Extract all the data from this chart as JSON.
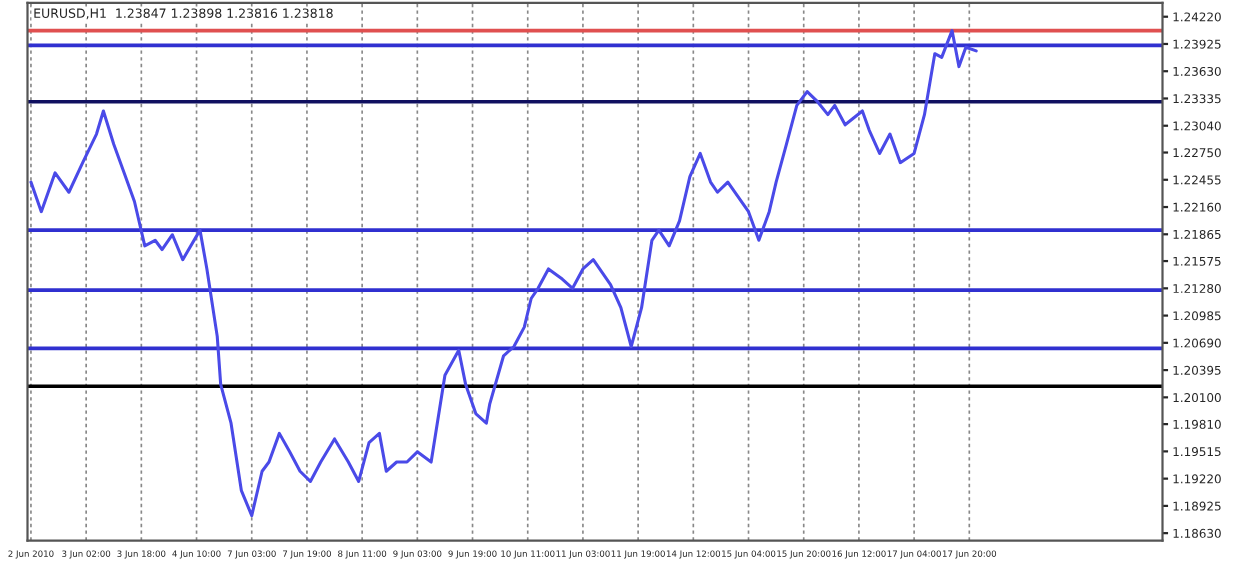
{
  "chart_data": {
    "type": "line",
    "title": "EURUSD,H1  1.23847 1.23898 1.23816 1.23818",
    "categories": [
      "2 Jun 2010",
      null,
      null,
      null,
      null,
      null,
      null,
      null,
      null,
      null,
      null,
      null,
      null,
      null,
      null,
      null,
      "3 Jun 02:00",
      null,
      null,
      null,
      null,
      null,
      null,
      null,
      null,
      null,
      null,
      null,
      null,
      null,
      null,
      null,
      "3 Jun 18:00",
      null,
      null,
      null,
      null,
      null,
      null,
      null,
      null,
      null,
      null,
      null,
      null,
      null,
      null,
      null,
      "4 Jun 10:00",
      null,
      null,
      null,
      null,
      null,
      null,
      null,
      null,
      null,
      null,
      null,
      null,
      null,
      null,
      null,
      "7 Jun 03:00",
      null,
      null,
      null,
      null,
      null,
      null,
      null,
      null,
      null,
      null,
      null,
      null,
      null,
      null,
      null,
      "7 Jun 19:00",
      null,
      null,
      null,
      null,
      null,
      null,
      null,
      null,
      null,
      null,
      null,
      null,
      null,
      null,
      null,
      "8 Jun 11:00",
      null,
      null,
      null,
      null,
      null,
      null,
      null,
      null,
      null,
      null,
      null,
      null,
      null,
      null,
      null,
      "9 Jun 03:00",
      null,
      null,
      null,
      null,
      null,
      null,
      null,
      null,
      null,
      null,
      null,
      null,
      null,
      null,
      null,
      "9 Jun 19:00",
      null,
      null,
      null,
      null,
      null,
      null,
      null,
      null,
      null,
      null,
      null,
      null,
      null,
      null,
      null,
      "10 Jun 11:00",
      null,
      null,
      null,
      null,
      null,
      null,
      null,
      null,
      null,
      null,
      null,
      null,
      null,
      null,
      null,
      "11 Jun 03:00",
      null,
      null,
      null,
      null,
      null,
      null,
      null,
      null,
      null,
      null,
      null,
      null,
      null,
      null,
      null,
      "11 Jun 19:00",
      null,
      null,
      null,
      null,
      null,
      null,
      null,
      null,
      null,
      null,
      null,
      null,
      null,
      null,
      null,
      "14 Jun 12:00",
      null,
      null,
      null,
      null,
      null,
      null,
      null,
      null,
      null,
      null,
      null,
      null,
      null,
      null,
      null,
      "15 Jun 04:00",
      null,
      null,
      null,
      null,
      null,
      null,
      null,
      null,
      null,
      null,
      null,
      null,
      null,
      null,
      null,
      "15 Jun 20:00",
      null,
      null,
      null,
      null,
      null,
      null,
      null,
      null,
      null,
      null,
      null,
      null,
      null,
      null,
      null,
      "16 Jun 12:00",
      null,
      null,
      null,
      null,
      null,
      null,
      null,
      null,
      null,
      null,
      null,
      null,
      null,
      null,
      null,
      "17 Jun 04:00",
      null,
      null,
      null,
      null,
      null,
      null,
      null,
      null,
      null,
      null,
      null,
      null,
      null,
      null,
      null,
      "17 Jun 20:00",
      null,
      null,
      null,
      null,
      null,
      null,
      null,
      null,
      null,
      null,
      null,
      null,
      null,
      null,
      null,
      null,
      null,
      null,
      null,
      null,
      null,
      null,
      null,
      null,
      null,
      null,
      null,
      null,
      null,
      null,
      null,
      null,
      null,
      null,
      null,
      null,
      null,
      null,
      null,
      null,
      null,
      null,
      null,
      null,
      null,
      null,
      null,
      null,
      null,
      null,
      null,
      null,
      null,
      null,
      null
    ],
    "series": [
      {
        "color": "#4a4ae8",
        "values": [
          1.2243,
          null,
          null,
          1.2211,
          null,
          null,
          null,
          1.2253,
          null,
          null,
          null,
          1.2232,
          null,
          null,
          null,
          1.2264,
          null,
          null,
          null,
          1.2295,
          null,
          1.232,
          null,
          null,
          1.2284,
          null,
          null,
          1.2253,
          null,
          null,
          1.2222,
          null,
          null,
          1.2174,
          null,
          null,
          1.218,
          null,
          1.217,
          null,
          null,
          1.2186,
          null,
          null,
          1.2159,
          null,
          null,
          null,
          null,
          1.2191,
          null,
          1.2149,
          null,
          null,
          1.2076,
          1.2024,
          null,
          null,
          1.1982,
          null,
          null,
          1.1909,
          null,
          null,
          1.1882,
          null,
          null,
          1.193,
          null,
          1.194,
          null,
          null,
          1.1971,
          null,
          null,
          1.1951,
          null,
          null,
          1.193,
          null,
          null,
          1.1919,
          null,
          null,
          1.194,
          null,
          null,
          null,
          1.1965,
          null,
          null,
          null,
          1.194,
          null,
          null,
          1.1919,
          null,
          null,
          1.1961,
          null,
          null,
          1.1971,
          null,
          1.193,
          null,
          null,
          1.194,
          null,
          null,
          1.194,
          null,
          null,
          1.1951,
          null,
          null,
          null,
          1.194,
          null,
          null,
          null,
          1.2034,
          null,
          null,
          null,
          1.2061,
          null,
          1.2024,
          null,
          null,
          1.1992,
          null,
          null,
          1.1982,
          1.2003,
          null,
          null,
          null,
          1.2055,
          null,
          null,
          1.2065,
          null,
          null,
          1.2086,
          null,
          1.2117,
          null,
          1.2128,
          null,
          null,
          1.2149,
          null,
          null,
          null,
          1.2138,
          null,
          null,
          1.2128,
          null,
          null,
          1.2149,
          null,
          null,
          1.2159,
          null,
          null,
          null,
          null,
          1.2132,
          null,
          null,
          1.2107,
          null,
          null,
          1.2065,
          null,
          null,
          1.2107,
          null,
          null,
          1.218,
          null,
          1.2191,
          null,
          null,
          1.2174,
          null,
          null,
          1.2201,
          null,
          null,
          1.2249,
          null,
          null,
          1.2274,
          null,
          null,
          1.2243,
          null,
          1.2232,
          null,
          null,
          1.2243,
          null,
          null,
          null,
          null,
          null,
          1.2211,
          null,
          null,
          1.218,
          null,
          null,
          1.2211,
          null,
          1.2243,
          null,
          null,
          1.2284,
          null,
          null,
          1.2326,
          null,
          null,
          1.2341,
          null,
          null,
          1.233,
          null,
          null,
          1.2316,
          null,
          1.2326,
          null,
          null,
          1.2305,
          null,
          null,
          null,
          null,
          1.232,
          null,
          1.2299,
          null,
          null,
          1.2274,
          null,
          null,
          1.2295,
          null,
          null,
          1.2264,
          null,
          null,
          null,
          1.2274,
          null,
          null,
          1.2316,
          null,
          null,
          1.2382,
          null,
          1.2378,
          null,
          null,
          1.2407,
          null,
          1.2368,
          null,
          1.2389,
          null,
          null,
          1.2385,
          null,
          null,
          null,
          null,
          null,
          null,
          null,
          null,
          null,
          null,
          null,
          null,
          null,
          null,
          null,
          null,
          null,
          null,
          null,
          null,
          null,
          null,
          null,
          null,
          null,
          null,
          null,
          null,
          null,
          null,
          null,
          null,
          null,
          null,
          null,
          null,
          null,
          null,
          null,
          null,
          null,
          null,
          null,
          null,
          null,
          null,
          null,
          null,
          null,
          null,
          null,
          null,
          null
        ]
      }
    ],
    "ylim": [
      1.1855,
      1.2437
    ],
    "yticks": [
      {
        "value": 1.1863,
        "label": "1.18630"
      },
      1.18925,
      {
        "value": 1.1922,
        "label": "1.19220"
      },
      1.19515,
      {
        "value": 1.1981,
        "label": "1.19810"
      },
      {
        "value": 1.201,
        "label": "1.20100"
      },
      1.20395,
      {
        "value": 1.2069,
        "label": "1.20690"
      },
      1.20985,
      {
        "value": 1.2128,
        "label": "1.21280"
      },
      1.21575,
      1.21865,
      {
        "value": 1.2216,
        "label": "1.22160"
      },
      1.22455,
      {
        "value": 1.2275,
        "label": "1.22750"
      },
      {
        "value": 1.2304,
        "label": "1.23040"
      },
      1.23335,
      {
        "value": 1.2363,
        "label": "1.23630"
      },
      1.23925,
      {
        "value": 1.2422,
        "label": "1.24220"
      }
    ],
    "ref_lines": [
      {
        "axis": "y",
        "value": 1.2407,
        "color": "#e05050"
      },
      {
        "axis": "y",
        "value": 1.2391,
        "color": "#3030d0"
      },
      {
        "axis": "y",
        "value": 1.233,
        "color": "#101060"
      },
      {
        "axis": "y",
        "value": 1.2191,
        "color": "#3030d0"
      },
      {
        "axis": "y",
        "value": 1.2126,
        "color": "#3030d0"
      },
      {
        "axis": "y",
        "value": 1.2063,
        "color": "#3030d0"
      },
      {
        "axis": "y",
        "value": 1.2022,
        "color": "#000000"
      }
    ],
    "grid": "x",
    "line_style": "solid",
    "marker": "none"
  }
}
